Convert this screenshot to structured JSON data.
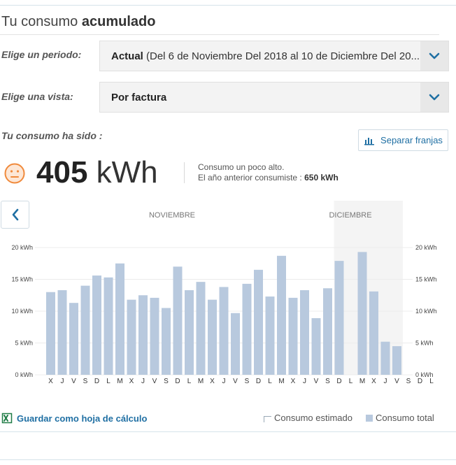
{
  "header": {
    "title_prefix": "Tu consumo",
    "title_bold": "acumulado"
  },
  "period": {
    "label": "Elige un periodo:",
    "value_bold": "Actual",
    "value_rest": "(Del 6 de Noviembre Del 2018 al 10 de Diciembre Del 20..."
  },
  "view": {
    "label": "Elige una vista:",
    "value": "Por factura"
  },
  "summary": {
    "label": "Tu consumo ha sido :",
    "value": "405",
    "unit": "kWh",
    "note_line1": "Consumo un poco alto.",
    "note_line2_prefix": "El año anterior consumiste :",
    "note_line2_value": "650 kWh"
  },
  "buttons": {
    "separate_bands": "Separar franjas",
    "save_spreadsheet": "Guardar como hoja de cálculo"
  },
  "legend": {
    "estimated": "Consumo estimado",
    "total": "Consumo total"
  },
  "icons": {
    "face": "neutral-face-icon",
    "chart_bands": "bar-chart-icon",
    "prev": "chevron-left-icon",
    "caret": "chevron-down-icon",
    "excel": "spreadsheet-icon"
  },
  "colors": {
    "accent": "#1f6fa3",
    "bar": "#b8c9de",
    "face": "#f08a3c"
  },
  "chart_data": {
    "type": "bar",
    "months": [
      "NOVIEMBRE",
      "DICIEMBRE"
    ],
    "categories": [
      "X",
      "J",
      "V",
      "S",
      "D",
      "L",
      "M",
      "X",
      "J",
      "V",
      "S",
      "D",
      "L",
      "M",
      "X",
      "J",
      "V",
      "S",
      "D",
      "L",
      "M",
      "X",
      "J",
      "V",
      "S",
      "D",
      "L",
      "M",
      "X",
      "J",
      "V",
      "S",
      "D",
      "L"
    ],
    "values": [
      13.0,
      13.3,
      11.3,
      14.0,
      15.6,
      15.3,
      17.5,
      11.8,
      12.5,
      12.1,
      10.5,
      17.0,
      13.3,
      14.6,
      11.8,
      13.8,
      9.7,
      14.3,
      16.5,
      12.3,
      18.7,
      12.1,
      13.3,
      8.9,
      13.6,
      17.9,
      null,
      19.3,
      13.1,
      5.2,
      4.5,
      null,
      null,
      null
    ],
    "ylabel": "kWh",
    "yticks": [
      "0 kWh",
      "5 kWh",
      "10 kWh",
      "15 kWh",
      "20 kWh"
    ],
    "ylim": [
      0,
      20
    ],
    "grid": true
  }
}
